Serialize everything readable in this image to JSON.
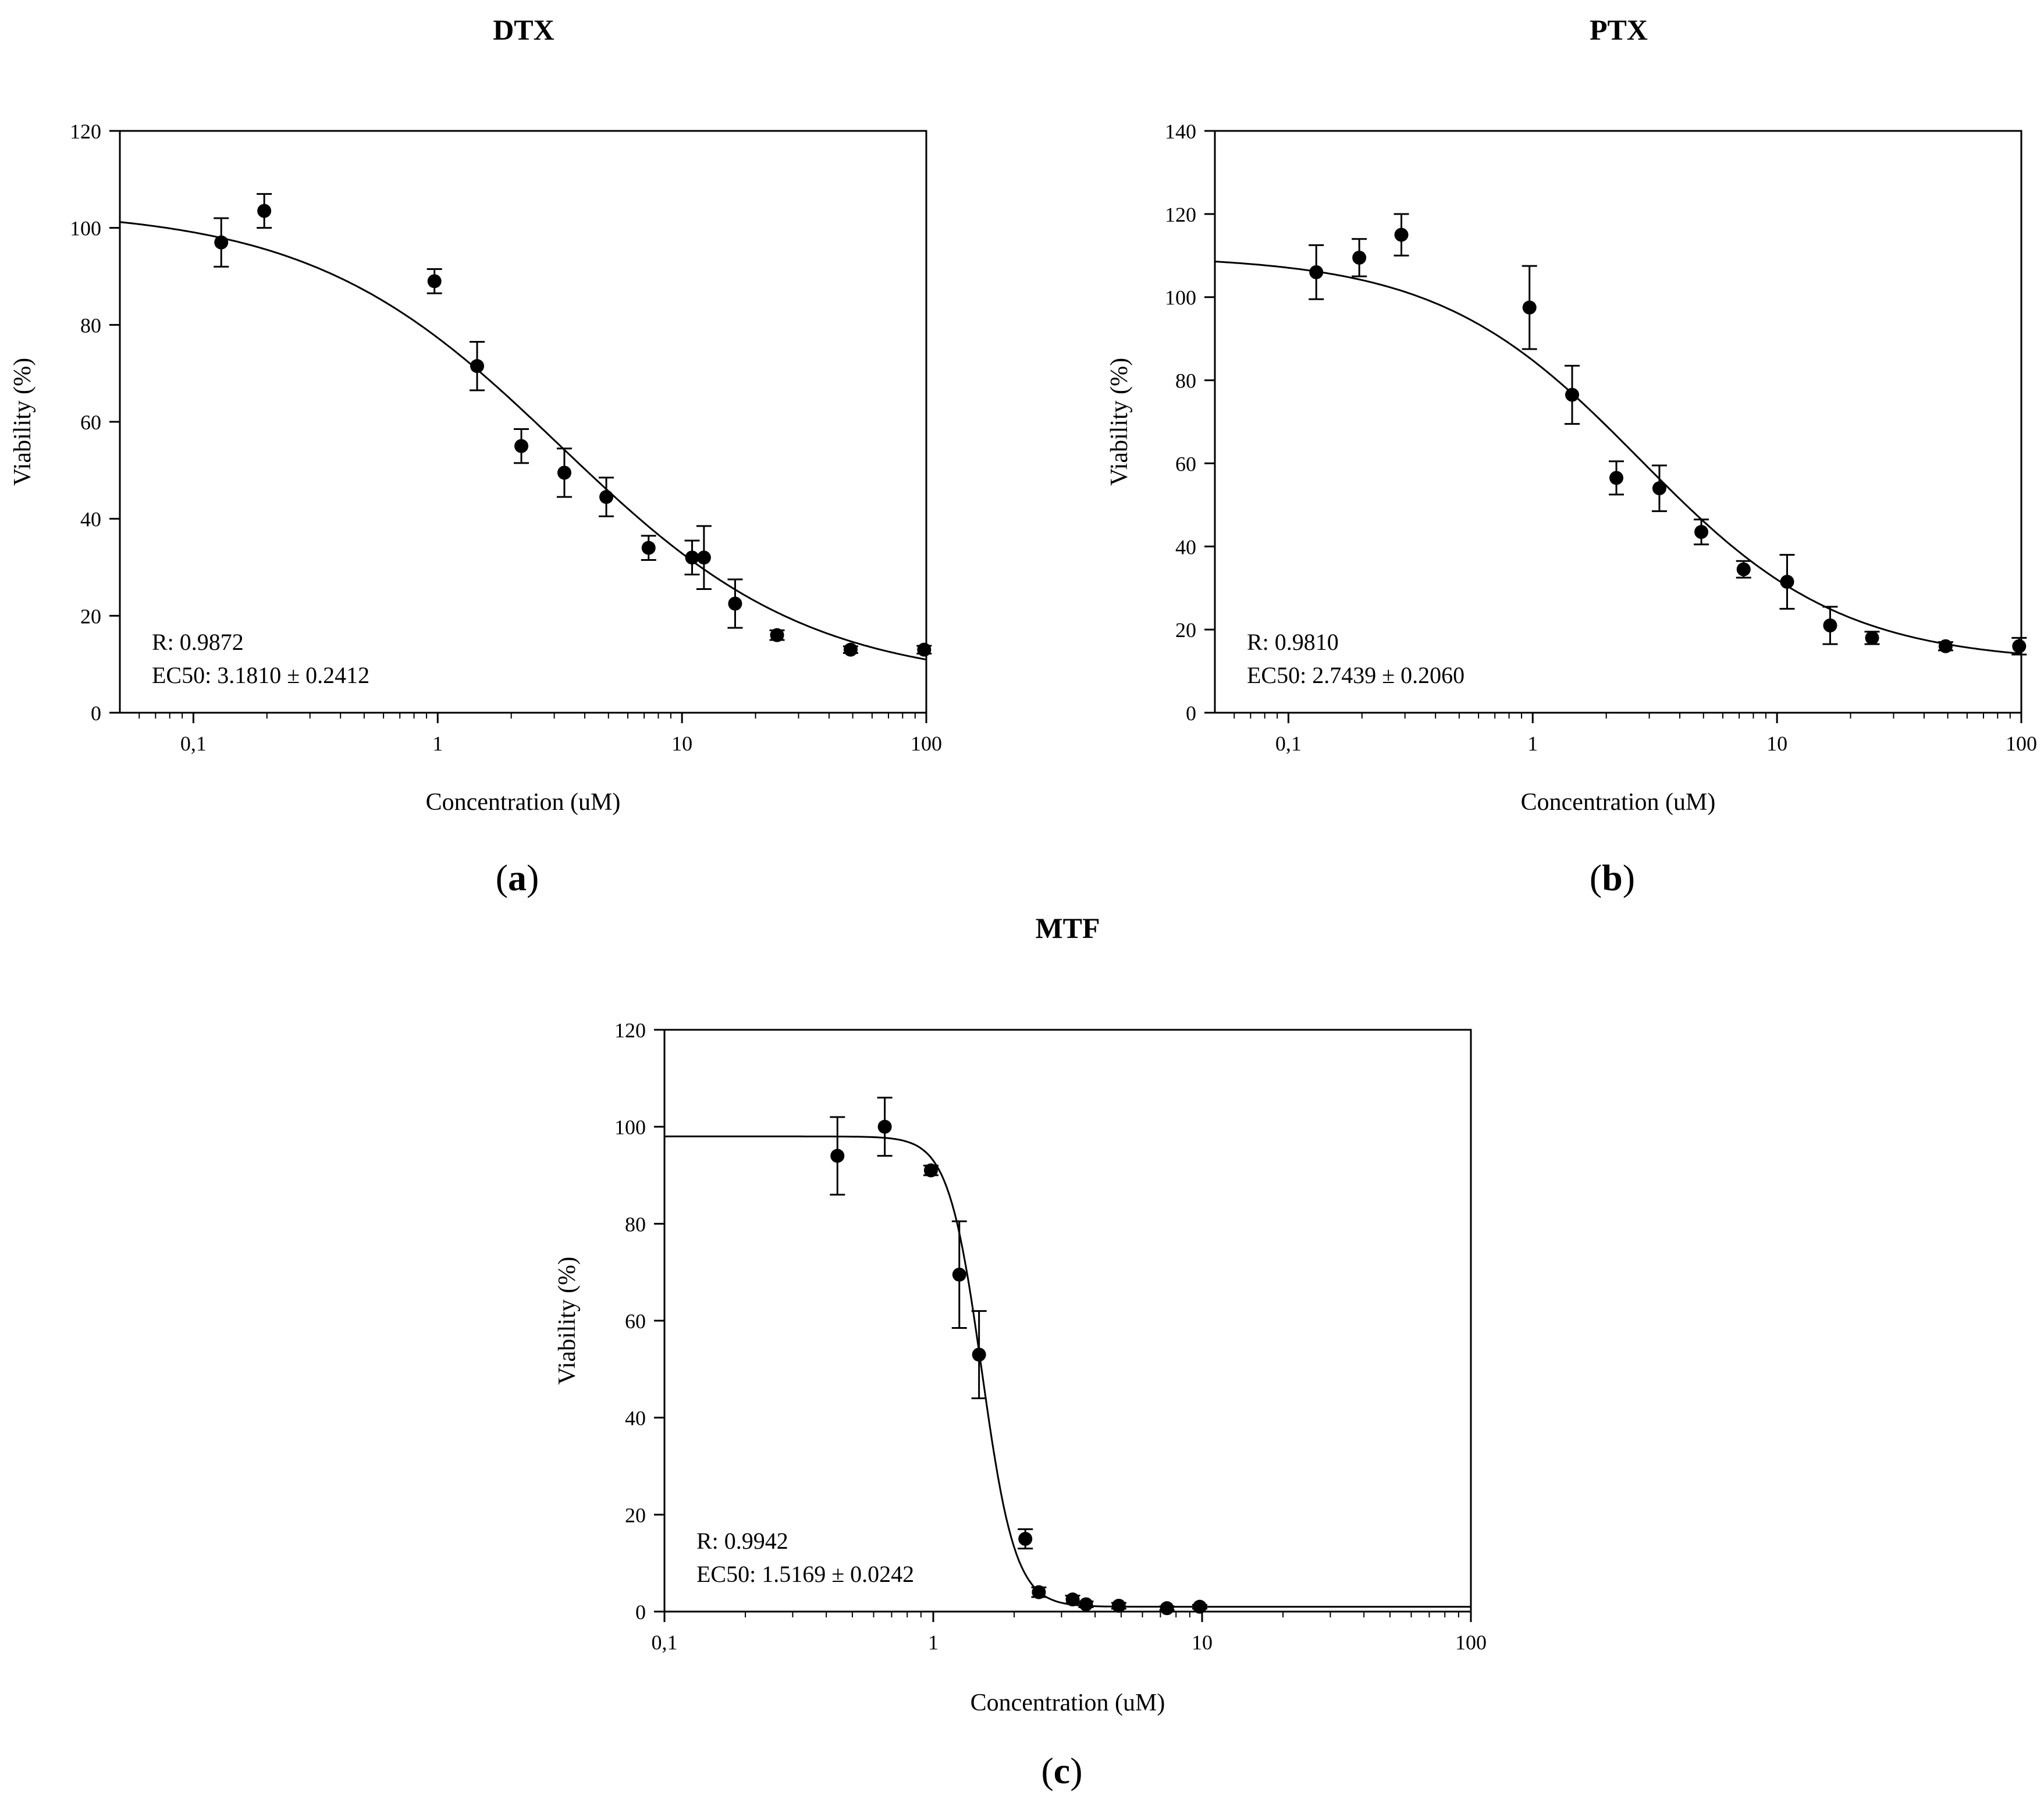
{
  "figure": {
    "panels": [
      {
        "id": "a",
        "letter": "a"
      },
      {
        "id": "b",
        "letter": "b"
      },
      {
        "id": "c",
        "letter": "c"
      }
    ]
  },
  "chart_data": [
    {
      "type": "scatter",
      "panel_label": "(a)",
      "title": "DTX",
      "xlabel": "Concentration (uM)",
      "ylabel": "Viability (%)",
      "x_scale": "log",
      "xlim": [
        0.05,
        100
      ],
      "ylim": [
        0,
        120
      ],
      "x_ticks": [
        0.1,
        1,
        10,
        100
      ],
      "x_tick_labels": [
        "0,1",
        "1",
        "10",
        "100"
      ],
      "y_ticks": [
        0,
        20,
        40,
        60,
        80,
        100,
        120
      ],
      "y_tick_labels": [
        "0",
        "20",
        "40",
        "60",
        "80",
        "100",
        "120"
      ],
      "annotations": [
        "R: 0.9872",
        "EC50: 3.1810 ± 0.2412"
      ],
      "fit": {
        "model": "four-parameter logistic",
        "top": 104,
        "bottom": 6,
        "ec50": 3.181,
        "hill": 0.85
      },
      "series": [
        {
          "x": [
            0.13,
            0.195,
            0.97,
            1.45,
            2.2,
            3.3,
            4.9,
            7.3,
            11,
            12.3,
            16.5,
            24.5,
            49,
            98
          ],
          "y": [
            97,
            103.5,
            89,
            71.5,
            55,
            49.5,
            44.5,
            34,
            32,
            32,
            22.5,
            16,
            13,
            13
          ],
          "error": [
            5,
            3.5,
            2.5,
            5,
            3.5,
            5,
            4,
            2.5,
            3.5,
            6.5,
            5,
            1,
            0.7,
            0.8
          ]
        }
      ]
    },
    {
      "type": "scatter",
      "panel_label": "(b)",
      "title": "PTX",
      "xlabel": "Concentration (uM)",
      "ylabel": "Viability (%)",
      "x_scale": "log",
      "xlim": [
        0.05,
        100
      ],
      "ylim": [
        0,
        140
      ],
      "x_ticks": [
        0.1,
        1,
        10,
        100
      ],
      "x_tick_labels": [
        "0,1",
        "1",
        "10",
        "100"
      ],
      "y_ticks": [
        0,
        20,
        40,
        60,
        80,
        100,
        120,
        140
      ],
      "y_tick_labels": [
        "0",
        "20",
        "40",
        "60",
        "80",
        "100",
        "120",
        "140"
      ],
      "annotations": [
        "R: 0.9810",
        "EC50: 2.7439 ± 0.2060"
      ],
      "fit": {
        "model": "four-parameter logistic",
        "top": 110,
        "bottom": 12,
        "ec50": 2.7439,
        "hill": 1.05
      },
      "series": [
        {
          "x": [
            0.13,
            0.195,
            0.29,
            0.97,
            1.45,
            2.2,
            3.3,
            4.9,
            7.3,
            11,
            16.5,
            24.5,
            49,
            98
          ],
          "y": [
            106,
            109.5,
            115,
            97.5,
            76.5,
            56.5,
            54,
            43.5,
            34.5,
            31.5,
            21,
            18,
            16,
            16
          ],
          "error": [
            6.5,
            4.5,
            5,
            10,
            7,
            4,
            5.5,
            3,
            2,
            6.5,
            4.5,
            1.5,
            1,
            2
          ]
        }
      ]
    },
    {
      "type": "scatter",
      "panel_label": "(c)",
      "title": "MTF",
      "xlabel": "Concentration (uM)",
      "ylabel": "Viability (%)",
      "x_scale": "log",
      "xlim": [
        0.1,
        100
      ],
      "ylim": [
        0,
        120
      ],
      "x_ticks": [
        0.1,
        1,
        10,
        100
      ],
      "x_tick_labels": [
        "0,1",
        "1",
        "10",
        "100"
      ],
      "y_ticks": [
        0,
        20,
        40,
        60,
        80,
        100,
        120
      ],
      "y_tick_labels": [
        "0",
        "20",
        "40",
        "60",
        "80",
        "100",
        "120"
      ],
      "annotations": [
        "R: 0.9942",
        "EC50: 1.5169 ± 0.0242"
      ],
      "fit": {
        "model": "four-parameter logistic",
        "top": 98,
        "bottom": 1,
        "ec50": 1.5169,
        "hill": 7
      },
      "series": [
        {
          "x": [
            0.44,
            0.66,
            0.98,
            1.25,
            1.48,
            2.2,
            2.47,
            3.3,
            3.7,
            4.9,
            7.4,
            9.8
          ],
          "y": [
            94,
            100,
            91,
            69.5,
            53,
            15,
            4,
            2.5,
            1.5,
            1.2,
            0.7,
            1
          ],
          "error": [
            8,
            6,
            1,
            11,
            9,
            2,
            1,
            0.8,
            0.6,
            0.6,
            0.4,
            0.4
          ]
        }
      ]
    }
  ]
}
